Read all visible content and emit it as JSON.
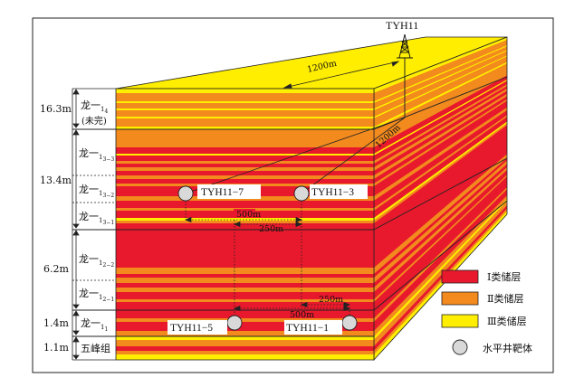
{
  "wellhead": {
    "name": "TYH11"
  },
  "distances": {
    "top_1200": "1200m",
    "side_1200": "1200m",
    "upper_500": "500m",
    "upper_250": "250m",
    "lower_250": "250m",
    "lower_500": "500m"
  },
  "targets": [
    {
      "name": "TYH11−7"
    },
    {
      "name": "TYH11−3"
    },
    {
      "name": "TYH11−5"
    },
    {
      "name": "TYH11−1"
    }
  ],
  "thickness": [
    {
      "value": "16.3m"
    },
    {
      "value": "13.4m"
    },
    {
      "value": "6.2m"
    },
    {
      "value": "1.4m"
    },
    {
      "value": "1.1m"
    }
  ],
  "layers": [
    {
      "name": "龙一",
      "sub": "1",
      "subsub": "4",
      "note": "(未完)"
    },
    {
      "name": "龙一",
      "sub": "1",
      "subsub": "3−3"
    },
    {
      "name": "龙一",
      "sub": "1",
      "subsub": "3−2"
    },
    {
      "name": "龙一",
      "sub": "1",
      "subsub": "3−1"
    },
    {
      "name": "龙一",
      "sub": "1",
      "subsub": "2−2"
    },
    {
      "name": "龙一",
      "sub": "1",
      "subsub": "2−1"
    },
    {
      "name": "龙一",
      "sub": "1",
      "subsub": "1"
    },
    {
      "name": "五峰组"
    }
  ],
  "legend": [
    {
      "label": "Ⅰ类储层",
      "color": "#e8192c"
    },
    {
      "label": "Ⅱ类储层",
      "color": "#f28a1e"
    },
    {
      "label": "Ⅲ类储层",
      "color": "#ffee00"
    },
    {
      "label": "水平井靶体",
      "color": "#d9d9d9"
    }
  ]
}
